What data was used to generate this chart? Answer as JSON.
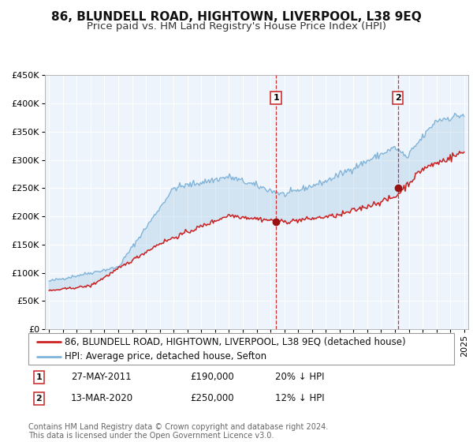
{
  "title": "86, BLUNDELL ROAD, HIGHTOWN, LIVERPOOL, L38 9EQ",
  "subtitle": "Price paid vs. HM Land Registry's House Price Index (HPI)",
  "legend_line1": "86, BLUNDELL ROAD, HIGHTOWN, LIVERPOOL, L38 9EQ (detached house)",
  "legend_line2": "HPI: Average price, detached house, Sefton",
  "annotation1_label": "1",
  "annotation1_date": "27-MAY-2011",
  "annotation1_price": "£190,000",
  "annotation1_hpi": "20% ↓ HPI",
  "annotation1_year": 2011.4,
  "annotation1_value": 190000,
  "annotation2_label": "2",
  "annotation2_date": "13-MAR-2020",
  "annotation2_price": "£250,000",
  "annotation2_hpi": "12% ↓ HPI",
  "annotation2_year": 2020.2,
  "annotation2_value": 250000,
  "hpi_color": "#7fb3d9",
  "price_color": "#cc2222",
  "dot_color": "#991111",
  "plot_bg_color": "#eef4fb",
  "ylim": [
    0,
    450000
  ],
  "yticks": [
    0,
    50000,
    100000,
    150000,
    200000,
    250000,
    300000,
    350000,
    400000,
    450000
  ],
  "footer": "Contains HM Land Registry data © Crown copyright and database right 2024.\nThis data is licensed under the Open Government Licence v3.0.",
  "title_fontsize": 11,
  "subtitle_fontsize": 9.5,
  "tick_fontsize": 8,
  "legend_fontsize": 8.5,
  "footer_fontsize": 7
}
